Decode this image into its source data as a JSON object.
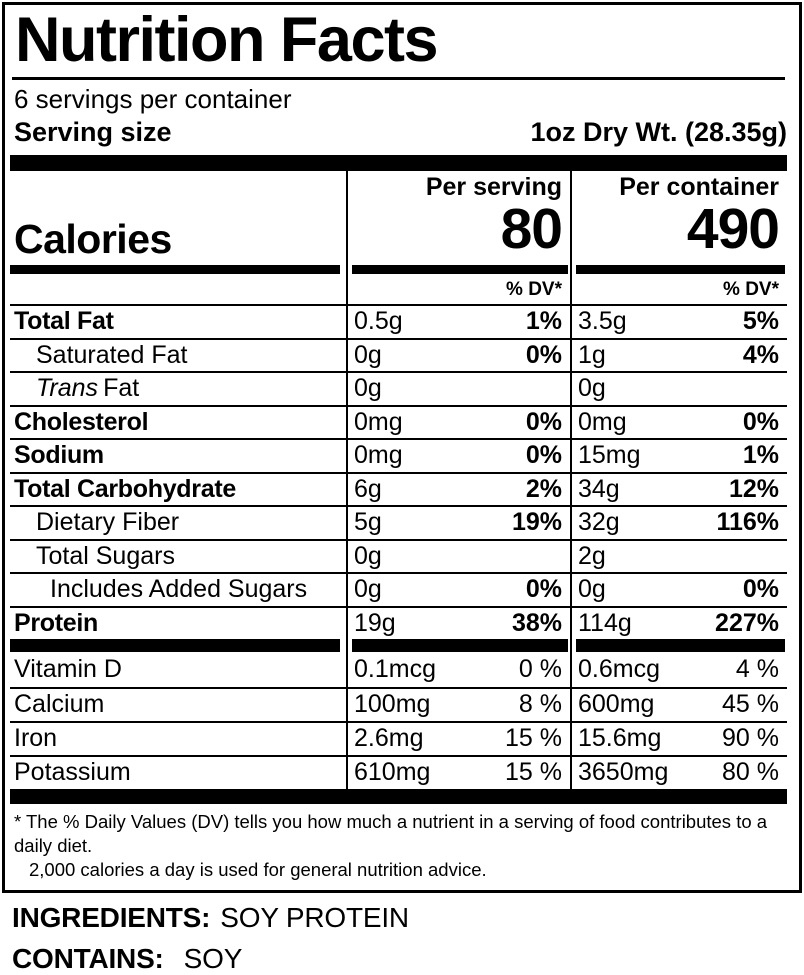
{
  "label": {
    "title": "Nutrition Facts",
    "servings_per_container": "6 servings per container",
    "serving_size_label": "Serving size",
    "serving_size_value": "1oz Dry Wt. (28.35g)",
    "calories_label": "Calories",
    "col_serving_header": "Per serving",
    "col_container_header": "Per container",
    "calories_per_serving": "80",
    "calories_per_container": "490",
    "dv_header": "% DV*",
    "rows": [
      {
        "name": "Total Fat",
        "s_amt": "0.5g",
        "s_dv": "1%",
        "c_amt": "3.5g",
        "c_dv": "5%"
      },
      {
        "name": "Saturated Fat",
        "s_amt": "0g",
        "s_dv": "0%",
        "c_amt": "1g",
        "c_dv": "4%"
      },
      {
        "name_italic": "Trans",
        "name": "Fat",
        "s_amt": "0g",
        "s_dv": "",
        "c_amt": "0g",
        "c_dv": ""
      },
      {
        "name": "Cholesterol",
        "s_amt": "0mg",
        "s_dv": "0%",
        "c_amt": "0mg",
        "c_dv": "0%"
      },
      {
        "name": "Sodium",
        "s_amt": "0mg",
        "s_dv": "0%",
        "c_amt": "15mg",
        "c_dv": "1%"
      },
      {
        "name": "Total Carbohydrate",
        "s_amt": "6g",
        "s_dv": "2%",
        "c_amt": "34g",
        "c_dv": "12%"
      },
      {
        "name": "Dietary Fiber",
        "s_amt": "5g",
        "s_dv": "19%",
        "c_amt": "32g",
        "c_dv": "116%"
      },
      {
        "name": "Total Sugars",
        "s_amt": "0g",
        "s_dv": "",
        "c_amt": "2g",
        "c_dv": ""
      },
      {
        "name": "Includes Added Sugars",
        "s_amt": "0g",
        "s_dv": "0%",
        "c_amt": "0g",
        "c_dv": "0%"
      },
      {
        "name": "Protein",
        "s_amt": "19g",
        "s_dv": "38%",
        "c_amt": "114g",
        "c_dv": "227%"
      },
      {
        "name": "Vitamin D",
        "s_amt": "0.1mcg",
        "s_dv": "0 %",
        "c_amt": "0.6mcg",
        "c_dv": "4 %"
      },
      {
        "name": "Calcium",
        "s_amt": "100mg",
        "s_dv": "8 %",
        "c_amt": "600mg",
        "c_dv": "45 %"
      },
      {
        "name": "Iron",
        "s_amt": "2.6mg",
        "s_dv": "15 %",
        "c_amt": "15.6mg",
        "c_dv": "90 %"
      },
      {
        "name": "Potassium",
        "s_amt": "610mg",
        "s_dv": "15 %",
        "c_amt": "3650mg",
        "c_dv": "80 %"
      }
    ],
    "footnote_line1": "* The % Daily Values (DV) tells you how much a nutrient in a serving of food contributes to a daily diet.",
    "footnote_line2": "2,000 calories a day is used for general nutrition advice."
  },
  "ingredients": {
    "label": "INGREDIENTS:",
    "value": "SOY PROTEIN"
  },
  "contains": {
    "label": "CONTAINS:",
    "value": "SOY"
  }
}
